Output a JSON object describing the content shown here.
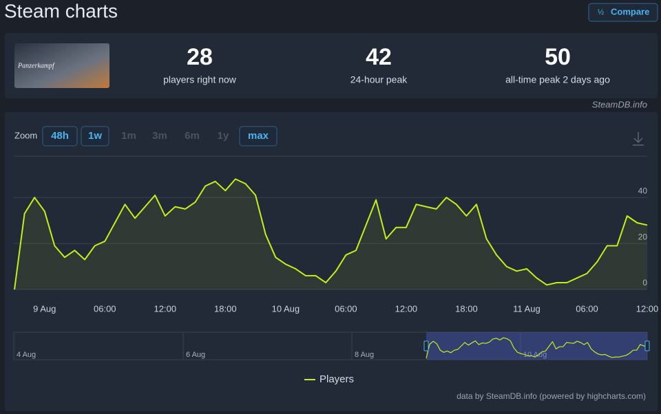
{
  "header": {
    "title": "Steam charts",
    "compare": "Compare"
  },
  "game": {
    "logo_text": "Panzerkampf"
  },
  "stats": [
    {
      "value": 28,
      "label": "players right now"
    },
    {
      "value": 42,
      "label": "24-hour peak"
    },
    {
      "value": 50,
      "label": "all-time peak 2 days ago"
    }
  ],
  "source_label": "SteamDB.info",
  "zoom": {
    "label": "Zoom",
    "buttons": [
      "48h",
      "1w",
      "1m",
      "3m",
      "6m",
      "1y",
      "max"
    ]
  },
  "navigator": {
    "labels": [
      "4 Aug",
      "6 Aug",
      "8 Aug",
      "10 Aug"
    ]
  },
  "credits": "data by SteamDB.info (powered by highcharts.com)",
  "chart_data": {
    "type": "line",
    "categories": [
      null,
      null,
      null,
      "9 Aug",
      null,
      null,
      null,
      null,
      null,
      "06:00",
      null,
      null,
      null,
      null,
      null,
      "12:00",
      null,
      null,
      null,
      null,
      null,
      "18:00",
      null,
      null,
      null,
      null,
      null,
      "10 Aug",
      null,
      null,
      null,
      null,
      null,
      "06:00",
      null,
      null,
      null,
      null,
      null,
      "12:00",
      null,
      null,
      null,
      null,
      null,
      "18:00",
      null,
      null,
      null,
      null,
      null,
      "11 Aug",
      null,
      null,
      null,
      null,
      null,
      "06:00",
      null,
      null,
      null,
      null,
      null,
      "12:00"
    ],
    "series": [
      {
        "name": "Players",
        "color": "#c6ee18",
        "values": [
          0,
          33,
          40,
          34,
          19,
          14,
          17,
          13,
          19,
          21,
          29,
          37,
          31,
          36,
          41,
          32,
          36,
          35,
          38,
          45,
          47,
          43,
          48,
          46,
          41,
          24,
          14,
          11,
          9,
          6,
          6,
          3,
          8,
          15,
          17,
          28,
          39,
          22,
          27,
          27,
          37,
          36,
          35,
          40,
          37,
          32,
          37,
          22,
          15,
          10,
          8,
          9,
          5,
          2,
          3,
          3,
          5,
          7,
          12,
          19,
          19,
          32,
          29,
          28
        ]
      }
    ],
    "ylim": [
      0,
      58
    ],
    "yticks": [
      0,
      20,
      40
    ],
    "grid": true
  }
}
